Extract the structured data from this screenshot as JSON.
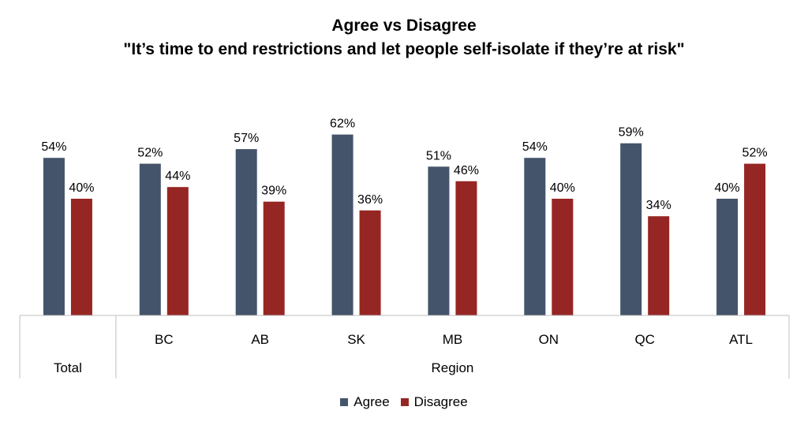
{
  "chart_data": {
    "type": "bar",
    "title": "Agree vs Disagree",
    "subtitle": "\"It’s time to end restrictions and let people self-isolate if they’re at risk\"",
    "categories": [
      "Total",
      "BC",
      "AB",
      "SK",
      "MB",
      "ON",
      "QC",
      "ATL"
    ],
    "groups": [
      {
        "label": "Total",
        "categories": [
          "Total"
        ]
      },
      {
        "label": "Region",
        "categories": [
          "BC",
          "AB",
          "SK",
          "MB",
          "ON",
          "QC",
          "ATL"
        ]
      }
    ],
    "series": [
      {
        "name": "Agree",
        "color": "#44546a",
        "values": [
          54,
          52,
          57,
          62,
          51,
          54,
          59,
          40
        ]
      },
      {
        "name": "Disagree",
        "color": "#962623",
        "values": [
          40,
          44,
          39,
          36,
          46,
          40,
          34,
          52
        ]
      }
    ],
    "value_suffix": "%",
    "ylim": [
      0,
      70
    ],
    "grid": false,
    "legend_position": "bottom"
  }
}
